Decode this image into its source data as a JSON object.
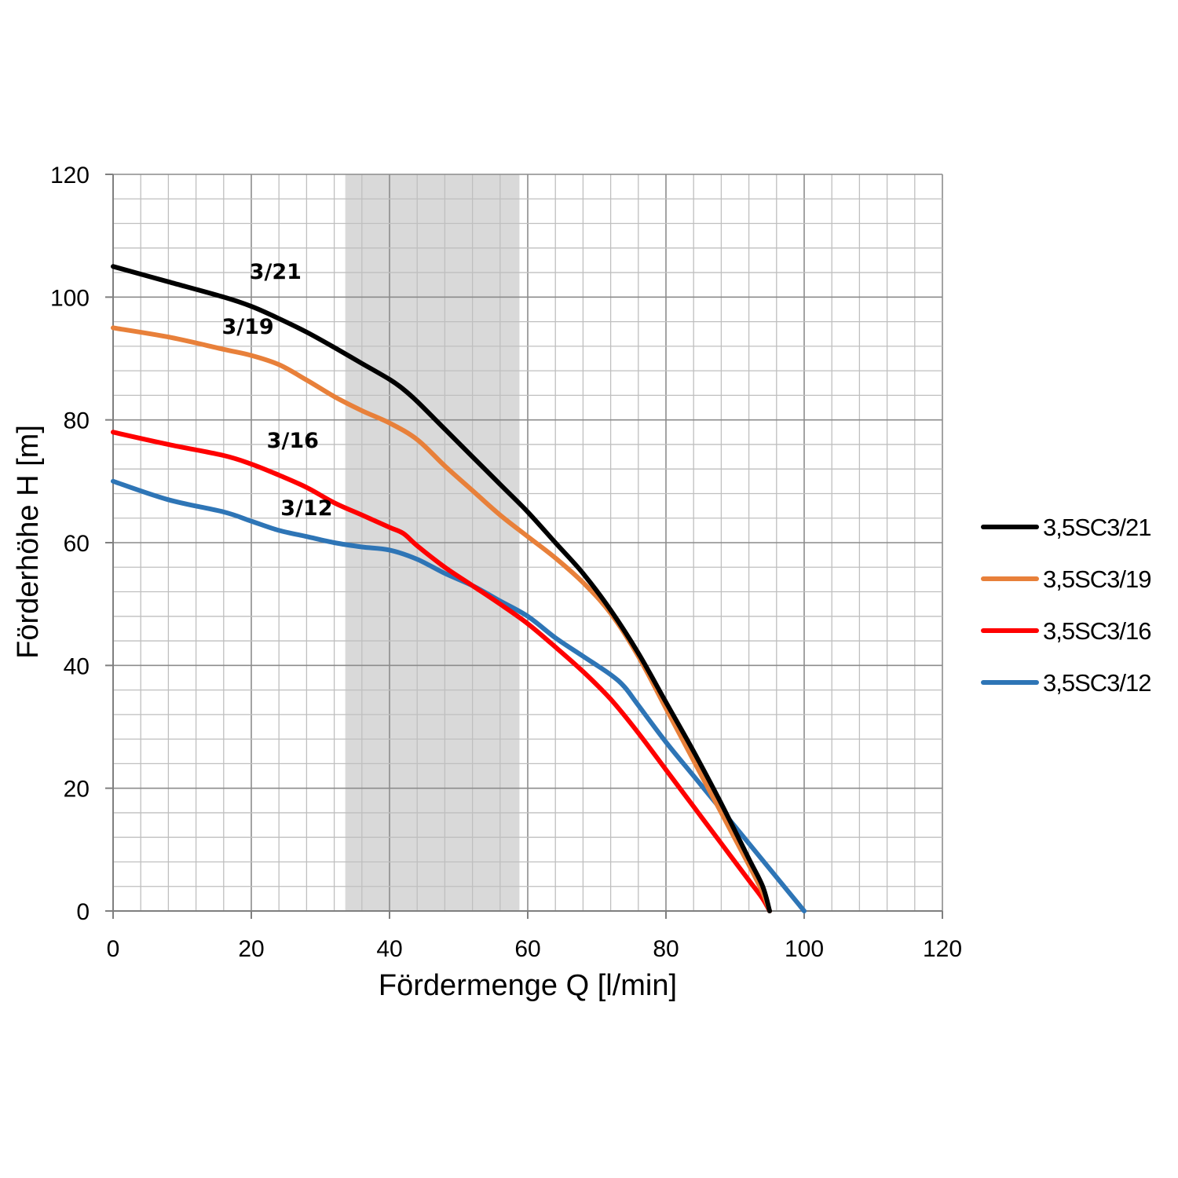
{
  "chart_data": {
    "type": "line",
    "xlabel": "Fördermenge Q [l/min]",
    "ylabel": "Förderhöhe H [m]",
    "xlim": [
      0,
      120
    ],
    "ylim": [
      0,
      120
    ],
    "x_ticks": [
      "0",
      "20",
      "40",
      "60",
      "80",
      "100",
      "120"
    ],
    "y_ticks": [
      "0",
      "20",
      "40",
      "60",
      "80",
      "100",
      "120"
    ],
    "grid": true,
    "minor_grid_step": 4,
    "minor_grid_step_y": 4,
    "highlight_band": {
      "x_from": 33.6,
      "x_to": 58.8,
      "color": "#d9d9d9"
    },
    "legend_position": "right",
    "series": [
      {
        "name": "3,5SC3/21",
        "curve_label": "3/21",
        "color": "#000000",
        "points": [
          [
            0,
            105
          ],
          [
            8,
            102.5
          ],
          [
            16,
            100
          ],
          [
            20,
            98.5
          ],
          [
            24,
            96.5
          ],
          [
            28,
            94.3
          ],
          [
            32,
            91.8
          ],
          [
            36,
            89.2
          ],
          [
            40,
            86.6
          ],
          [
            42,
            85
          ],
          [
            44,
            83
          ],
          [
            48,
            78.5
          ],
          [
            52,
            74
          ],
          [
            56,
            69.5
          ],
          [
            60,
            65
          ],
          [
            64,
            60
          ],
          [
            68,
            55
          ],
          [
            72,
            49
          ],
          [
            76,
            42
          ],
          [
            80,
            34
          ],
          [
            84,
            26
          ],
          [
            88,
            17.5
          ],
          [
            92,
            8.5
          ],
          [
            94,
            4
          ],
          [
            95,
            0
          ]
        ]
      },
      {
        "name": "3,5SC3/19",
        "curve_label": "3/19",
        "color": "#e8803a",
        "points": [
          [
            0,
            95
          ],
          [
            8,
            93.5
          ],
          [
            16,
            91.5
          ],
          [
            20,
            90.5
          ],
          [
            24,
            89
          ],
          [
            28,
            86.5
          ],
          [
            32,
            83.8
          ],
          [
            36,
            81.5
          ],
          [
            40,
            79.5
          ],
          [
            44,
            76.8
          ],
          [
            48,
            72.5
          ],
          [
            52,
            68.5
          ],
          [
            56,
            64.5
          ],
          [
            60,
            61
          ],
          [
            64,
            57.5
          ],
          [
            68,
            53.5
          ],
          [
            72,
            48.5
          ],
          [
            76,
            41.5
          ],
          [
            80,
            33
          ],
          [
            84,
            24.5
          ],
          [
            88,
            16
          ],
          [
            92,
            7.5
          ],
          [
            94,
            3
          ],
          [
            95,
            0
          ]
        ]
      },
      {
        "name": "3,5SC3/16",
        "curve_label": "3/16",
        "color": "#ff0000",
        "points": [
          [
            0,
            78
          ],
          [
            8,
            76
          ],
          [
            16,
            74.2
          ],
          [
            20,
            72.8
          ],
          [
            24,
            71
          ],
          [
            28,
            69
          ],
          [
            32,
            66.5
          ],
          [
            36,
            64.5
          ],
          [
            40,
            62.5
          ],
          [
            42,
            61.5
          ],
          [
            44,
            59.5
          ],
          [
            48,
            56
          ],
          [
            52,
            53
          ],
          [
            56,
            50
          ],
          [
            60,
            46.8
          ],
          [
            64,
            43
          ],
          [
            68,
            39
          ],
          [
            72,
            34.5
          ],
          [
            76,
            29
          ],
          [
            80,
            23
          ],
          [
            84,
            17
          ],
          [
            88,
            11
          ],
          [
            92,
            5
          ],
          [
            94,
            2
          ],
          [
            95,
            0
          ]
        ]
      },
      {
        "name": "3,5SC3/12",
        "curve_label": "3/12",
        "color": "#2e75b6",
        "points": [
          [
            0,
            70
          ],
          [
            8,
            67
          ],
          [
            16,
            65
          ],
          [
            20,
            63.5
          ],
          [
            24,
            62
          ],
          [
            28,
            61
          ],
          [
            32,
            60
          ],
          [
            36,
            59.3
          ],
          [
            40,
            58.8
          ],
          [
            44,
            57.3
          ],
          [
            48,
            55
          ],
          [
            52,
            53
          ],
          [
            56,
            50.5
          ],
          [
            60,
            48
          ],
          [
            64,
            44.5
          ],
          [
            68,
            41.5
          ],
          [
            72,
            38.5
          ],
          [
            74,
            36.5
          ],
          [
            76,
            33.5
          ],
          [
            80,
            27.5
          ],
          [
            84,
            22
          ],
          [
            88,
            16.5
          ],
          [
            92,
            11
          ],
          [
            96,
            5.5
          ],
          [
            100,
            0
          ]
        ]
      }
    ]
  }
}
